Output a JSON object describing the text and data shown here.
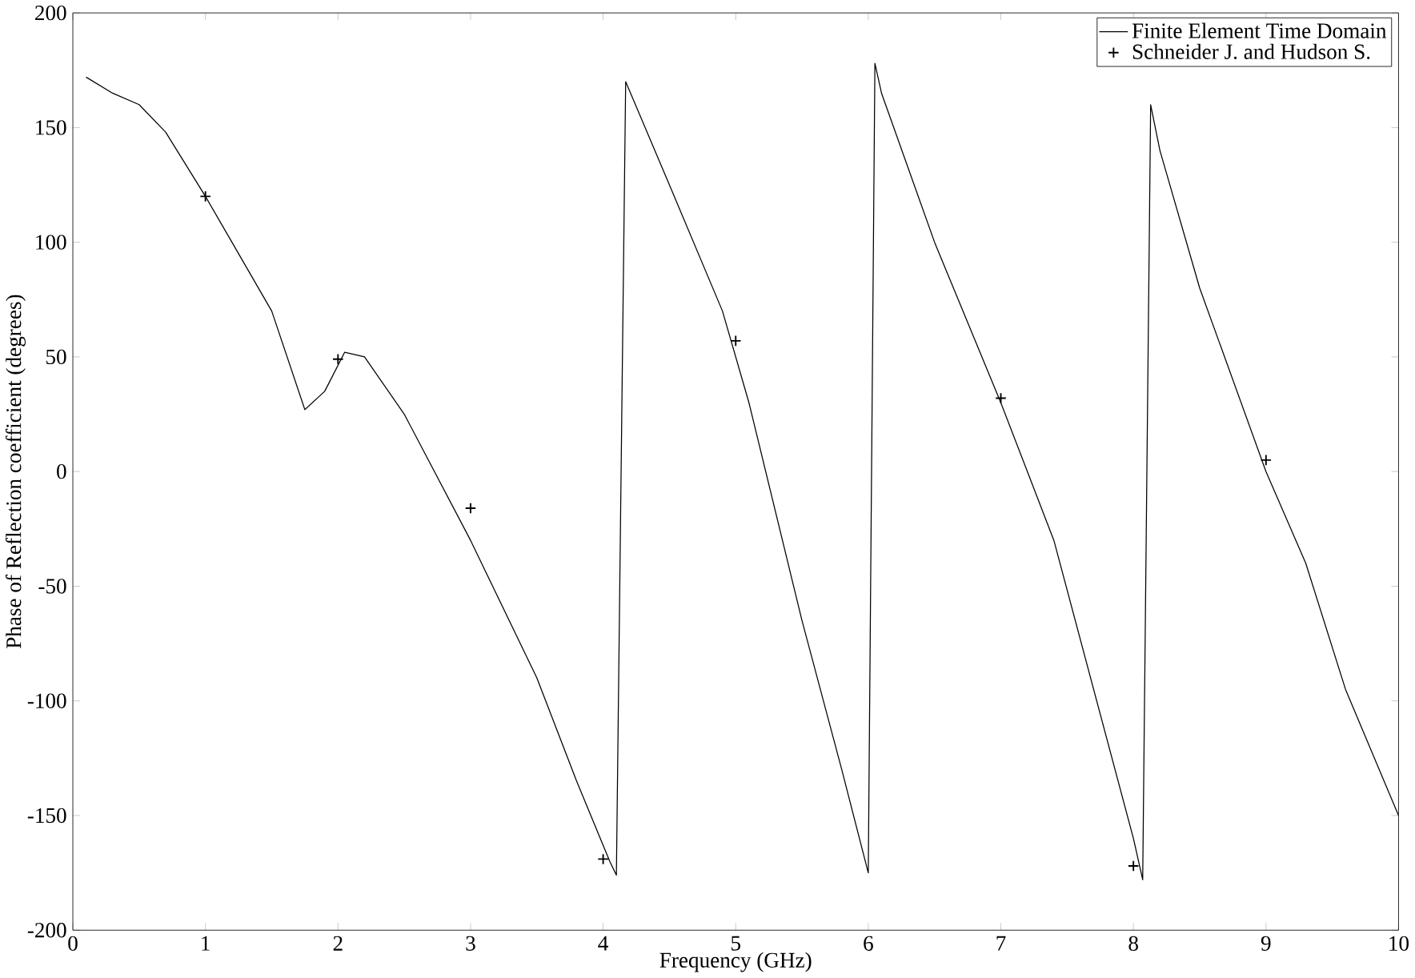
{
  "chart_data": {
    "type": "line",
    "xlabel": "Frequency (GHz)",
    "ylabel": "Phase of Reflection coefficient (degrees)",
    "xlim": [
      0,
      10
    ],
    "ylim": [
      -200,
      200
    ],
    "xticks": [
      0,
      1,
      2,
      3,
      4,
      5,
      6,
      7,
      8,
      9,
      10
    ],
    "yticks": [
      -200,
      -150,
      -100,
      -50,
      0,
      50,
      100,
      150,
      200
    ],
    "legend": "top right",
    "grid": false,
    "series": [
      {
        "name": "Finite Element Time Domain",
        "color": "#000000",
        "marker": "none",
        "line_style": "solid",
        "x": [
          0.1,
          0.3,
          0.5,
          0.7,
          1.0,
          1.2,
          1.5,
          1.75,
          1.9,
          2.05,
          2.2,
          2.5,
          3.0,
          3.5,
          3.8,
          4.05,
          4.1,
          4.17,
          4.5,
          4.9,
          5.1,
          5.5,
          5.8,
          6.0,
          6.05,
          6.1,
          6.5,
          7.0,
          7.4,
          7.7,
          8.0,
          8.07,
          8.13,
          8.2,
          8.5,
          9.0,
          9.3,
          9.6,
          10.0
        ],
        "values": [
          172,
          165,
          160,
          148,
          120,
          100,
          70,
          27,
          35,
          52,
          50,
          25,
          -30,
          -90,
          -135,
          -170,
          -176,
          170,
          125,
          70,
          30,
          -65,
          -130,
          -175,
          178,
          165,
          100,
          30,
          -30,
          -95,
          -160,
          -178,
          160,
          140,
          80,
          0,
          -40,
          -95,
          -150
        ]
      },
      {
        "name": "Schneider J. and Hudson S.",
        "type": "scatter",
        "color": "#000000",
        "marker": "cross",
        "x": [
          1,
          2,
          3,
          4,
          5,
          7,
          8,
          9
        ],
        "values": [
          120,
          49,
          -16,
          -169,
          57,
          32,
          -172,
          5
        ]
      }
    ]
  }
}
